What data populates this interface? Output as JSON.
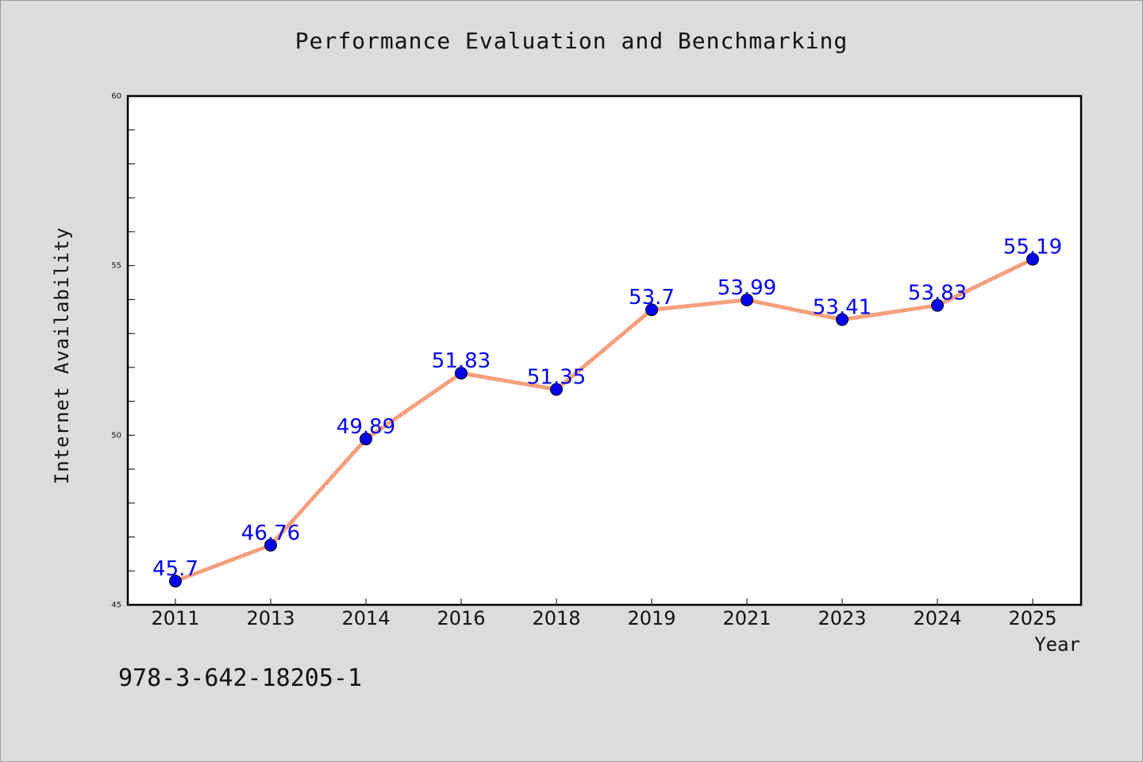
{
  "page": {
    "footnote": "978-3-642-18205-1"
  },
  "chart_data": {
    "type": "line",
    "title": "Performance Evaluation and Benchmarking",
    "xlabel": "Year",
    "ylabel": "Internet Availability",
    "categories": [
      "2011",
      "2013",
      "2014",
      "2016",
      "2018",
      "2019",
      "2021",
      "2023",
      "2024",
      "2025"
    ],
    "series": [
      {
        "values": [
          45.7,
          46.76,
          49.89,
          51.83,
          51.35,
          53.7,
          53.99,
          53.41,
          53.83,
          55.19
        ],
        "labels": [
          "45.7",
          "46.76",
          "49.89",
          "51.83",
          "51.35",
          "53.7",
          "53.99",
          "53.41",
          "53.83",
          "55.19"
        ],
        "line_color": "#f4a07e",
        "marker_color": "#0000ee"
      }
    ],
    "ylim": [
      45,
      60
    ],
    "yticks": [
      "45",
      "50",
      "55",
      "60"
    ],
    "grid": false,
    "legend": "none",
    "data_label_color": "#0000ee"
  }
}
